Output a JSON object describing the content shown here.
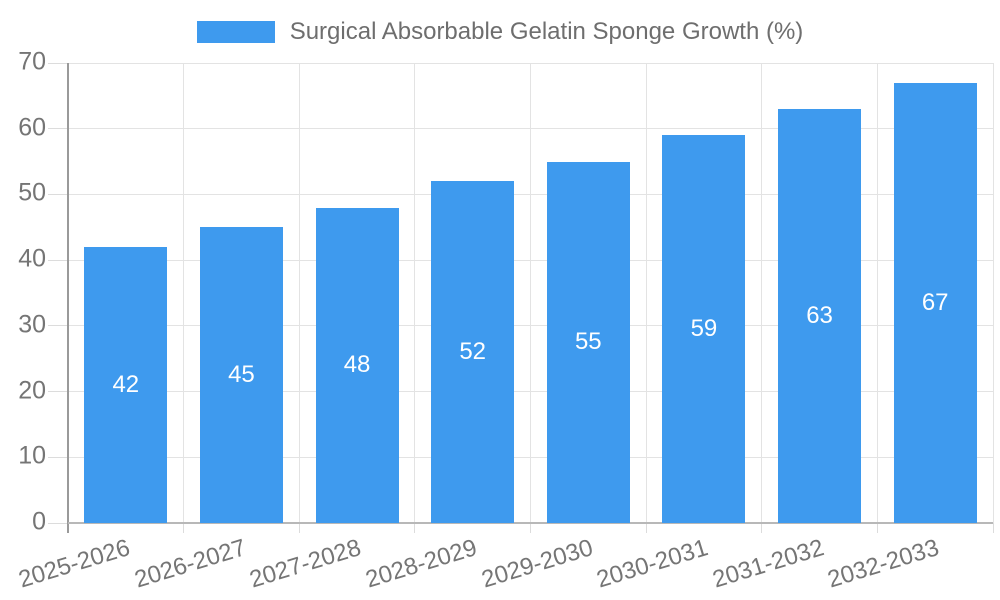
{
  "legend": {
    "label": "Surgical Absorbable Gelatin Sponge Growth (%)",
    "swatch_color": "#3E9AEE"
  },
  "chart_data": {
    "type": "bar",
    "title": "Surgical Absorbable Gelatin Sponge Growth (%)",
    "categories": [
      "2025-2026",
      "2026-2027",
      "2027-2028",
      "2028-2029",
      "2029-2030",
      "2030-2031",
      "2031-2032",
      "2032-2033"
    ],
    "values": [
      42,
      45,
      48,
      52,
      55,
      59,
      63,
      67
    ],
    "value_labels": [
      "42",
      "45",
      "48",
      "52",
      "55",
      "59",
      "63",
      "67"
    ],
    "ytick_labels": [
      "0",
      "10",
      "20",
      "30",
      "40",
      "50",
      "60",
      "70"
    ],
    "yticks": [
      0,
      10,
      20,
      30,
      40,
      50,
      60,
      70
    ],
    "ylim": [
      0,
      70
    ],
    "xlabel": "",
    "ylabel": "",
    "grid": true,
    "legend_position": "top",
    "bar_color": "#3E9AEE",
    "value_label_color": "#FFFFFF"
  },
  "colors": {
    "bar": "#3E9AEE",
    "gridline": "#E3E3E3",
    "tick": "#DCDCDC",
    "y_axis_line": "#9A9A9A",
    "x_axis_line": "#B8B8B8",
    "tick_text": "#757575",
    "legend_text": "#6E6E6E",
    "background": "#FFFFFF"
  }
}
